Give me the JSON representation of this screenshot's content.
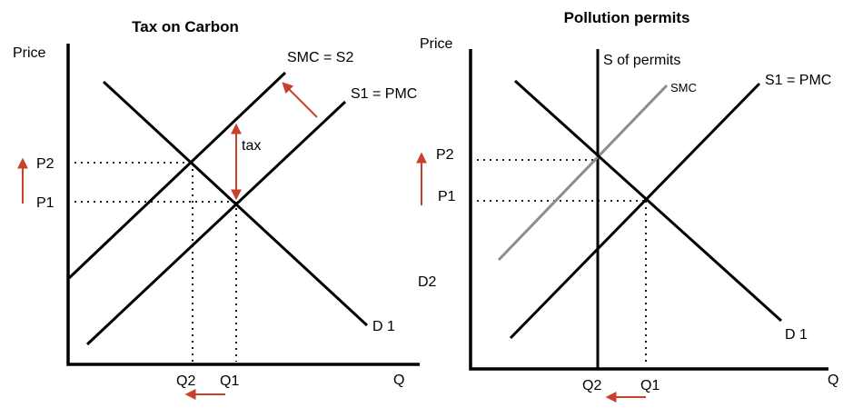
{
  "colors": {
    "arrow": "#c8412b",
    "smc_permits": "#8c8c8c",
    "line": "#000000"
  },
  "left": {
    "title": "Tax on Carbon",
    "y_axis_label": "Price",
    "x_axis_label": "Q",
    "smc_label": "SMC = S2",
    "pmc_label": "S1 = PMC",
    "demand_label": "D 1",
    "tax_label": "tax",
    "p2_label": "P2",
    "p1_label": "P1",
    "q2_label": "Q2",
    "q1_label": "Q1"
  },
  "right": {
    "title": "Pollution permits",
    "y_axis_label": "Price",
    "x_axis_label": "Q",
    "permits_label": "S of permits",
    "smc_label": "SMC",
    "pmc_label": "S1 = PMC",
    "d2_label": "D2",
    "demand_label": "D 1",
    "p2_label": "P2",
    "p1_label": "P1",
    "q2_label": "Q2",
    "q1_label": "Q1"
  }
}
